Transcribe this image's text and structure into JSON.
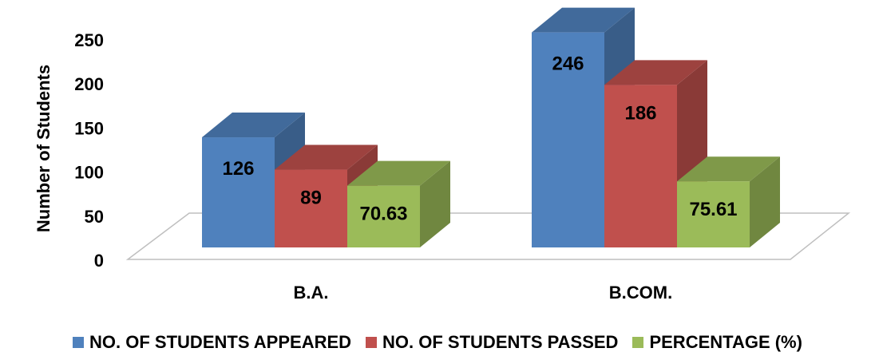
{
  "chart_data": {
    "type": "bar",
    "ylabel": "Number of Students",
    "ylim": [
      0,
      250
    ],
    "yticks": [
      "0",
      "50",
      "100",
      "150",
      "200",
      "250"
    ],
    "categories": [
      "B.A.",
      "B.COM."
    ],
    "series": [
      {
        "name": "NO. OF STUDENTS APPEARED",
        "values": [
          126,
          246
        ],
        "labels": [
          "126",
          "246"
        ],
        "color": "#4F81BD"
      },
      {
        "name": "NO. OF STUDENTS PASSED",
        "values": [
          89,
          186
        ],
        "labels": [
          "89",
          "186"
        ],
        "color": "#C0504D"
      },
      {
        "name": "PERCENTAGE (%)",
        "values": [
          70.63,
          75.61
        ],
        "labels": [
          "70.63",
          "75.61"
        ],
        "color": "#9BBB59"
      }
    ],
    "style": "3d-column",
    "grid": false,
    "legend": "bottom"
  }
}
